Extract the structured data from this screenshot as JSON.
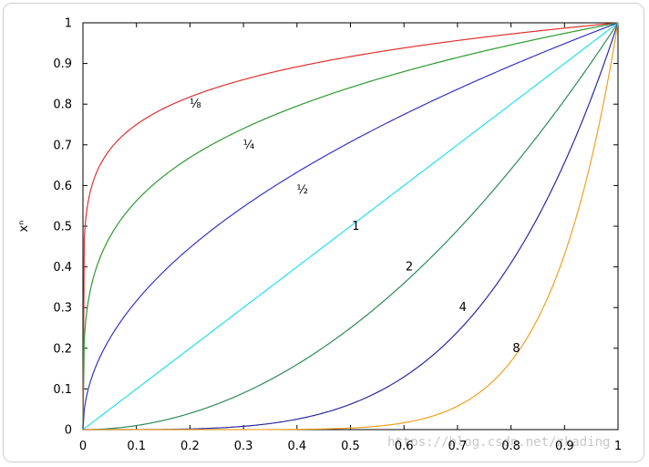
{
  "chart_data": {
    "type": "line",
    "ylabel": "xⁿ",
    "xlim": [
      0,
      1
    ],
    "ylim": [
      0,
      1
    ],
    "grid": false,
    "x_ticks": [
      "0",
      "0.1",
      "0.2",
      "0.3",
      "0.4",
      "0.5",
      "0.6",
      "0.7",
      "0.8",
      "0.9",
      "1"
    ],
    "y_ticks": [
      "0",
      "0.1",
      "0.2",
      "0.3",
      "0.4",
      "0.5",
      "0.6",
      "0.7",
      "0.8",
      "0.9",
      "1"
    ],
    "series": [
      {
        "name": "⅛",
        "exponent": 0.125,
        "color": "#e0312f",
        "label_x": 0.21,
        "label_y": 0.8
      },
      {
        "name": "¼",
        "exponent": 0.25,
        "color": "#2e9a2e",
        "label_x": 0.31,
        "label_y": 0.7
      },
      {
        "name": "½",
        "exponent": 0.5,
        "color": "#3535c8",
        "label_x": 0.41,
        "label_y": 0.59
      },
      {
        "name": "1",
        "exponent": 1,
        "color": "#22e0f0",
        "label_x": 0.51,
        "label_y": 0.5
      },
      {
        "name": "2",
        "exponent": 2,
        "color": "#2e8b57",
        "label_x": 0.61,
        "label_y": 0.4
      },
      {
        "name": "4",
        "exponent": 4,
        "color": "#2a2aa0",
        "label_x": 0.71,
        "label_y": 0.3
      },
      {
        "name": "8",
        "exponent": 8,
        "color": "#f0a020",
        "label_x": 0.81,
        "label_y": 0.2
      }
    ]
  },
  "watermark": "https://blog.csdn.net/zkading"
}
